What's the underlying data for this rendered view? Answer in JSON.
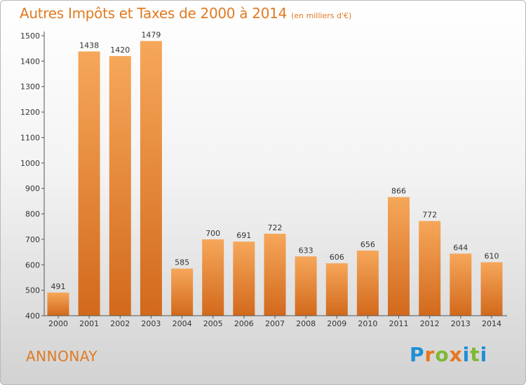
{
  "title": "Autres Impôts et Taxes de 2000 à 2014",
  "unit": "(en milliers d'€)",
  "city": "ANNONAY",
  "brand": "Proxiti",
  "colors": {
    "accent": "#e07a22",
    "bar_light": "#f6a75a",
    "bar_dark": "#d2691c",
    "brand_letters": [
      "#1e8fd6",
      "#e8761e",
      "#7fb832",
      "#e8761e",
      "#1e8fd6",
      "#7fb832",
      "#1e8fd6"
    ]
  },
  "chart_data": {
    "type": "bar",
    "categories": [
      "2000",
      "2001",
      "2002",
      "2003",
      "2004",
      "2005",
      "2006",
      "2007",
      "2008",
      "2009",
      "2010",
      "2011",
      "2012",
      "2013",
      "2014"
    ],
    "values": [
      491,
      1438,
      1420,
      1479,
      585,
      700,
      691,
      722,
      633,
      606,
      656,
      866,
      772,
      644,
      610
    ],
    "ylim": [
      400,
      1500
    ],
    "yticks": [
      400,
      500,
      600,
      700,
      800,
      900,
      1000,
      1100,
      1200,
      1300,
      1400,
      1500
    ],
    "grid": false,
    "data_labels": true
  }
}
